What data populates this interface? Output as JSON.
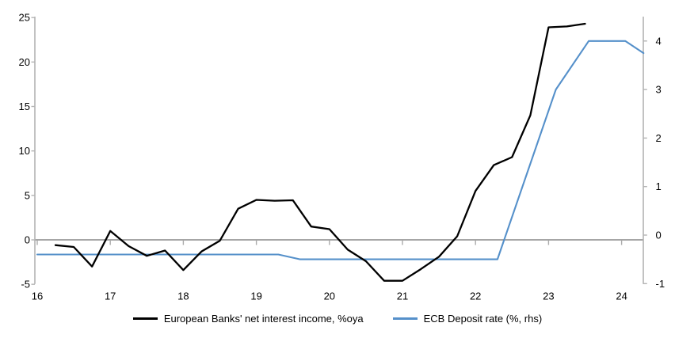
{
  "chart_data": {
    "type": "line",
    "title": "",
    "x_axis": {
      "ticks": [
        16,
        17,
        18,
        19,
        20,
        21,
        22,
        23,
        24
      ],
      "min": 16,
      "max": 24.35
    },
    "left_axis": {
      "ticks": [
        25,
        20,
        15,
        10,
        5,
        0,
        -5
      ],
      "min": -5,
      "max": 25
    },
    "right_axis": {
      "ticks": [
        4,
        3,
        2,
        1,
        0,
        -1
      ],
      "min": -1.05,
      "max": 4.5
    },
    "grid": "zero-line-only",
    "legend_position": "bottom",
    "series": [
      {
        "name": "European Banks' net interest income, %oya",
        "axis": "left",
        "color": "#000000",
        "points": [
          [
            16.25,
            -0.6
          ],
          [
            16.5,
            -0.8
          ],
          [
            16.75,
            -3.0
          ],
          [
            17.0,
            1.0
          ],
          [
            17.25,
            -0.7
          ],
          [
            17.5,
            -1.8
          ],
          [
            17.75,
            -1.2
          ],
          [
            18.0,
            -3.4
          ],
          [
            18.25,
            -1.3
          ],
          [
            18.5,
            -0.1
          ],
          [
            18.75,
            3.5
          ],
          [
            19.0,
            4.5
          ],
          [
            19.25,
            4.4
          ],
          [
            19.5,
            4.45
          ],
          [
            19.75,
            1.5
          ],
          [
            20.0,
            1.2
          ],
          [
            20.25,
            -1.1
          ],
          [
            20.5,
            -2.4
          ],
          [
            20.75,
            -4.6
          ],
          [
            21.0,
            -4.6
          ],
          [
            21.25,
            -3.3
          ],
          [
            21.5,
            -1.9
          ],
          [
            21.75,
            0.4
          ],
          [
            22.0,
            5.5
          ],
          [
            22.25,
            8.4
          ],
          [
            22.5,
            9.3
          ],
          [
            22.75,
            14.0
          ],
          [
            23.0,
            23.9
          ],
          [
            23.25,
            24.0
          ],
          [
            23.5,
            24.3
          ]
        ]
      },
      {
        "name": "ECB Deposit rate (%, rhs)",
        "axis": "right",
        "color": "#5590CA",
        "points": [
          [
            16.0,
            -0.4
          ],
          [
            19.3,
            -0.4
          ],
          [
            19.6,
            -0.5
          ],
          [
            22.3,
            -0.5
          ],
          [
            23.1,
            3.0
          ],
          [
            23.55,
            4.0
          ],
          [
            24.05,
            4.0
          ],
          [
            24.3,
            3.75
          ]
        ]
      }
    ],
    "colors": {
      "zero_line": "#A6A6A6",
      "spine": "#B3B3B3",
      "year_tick": "#ABABAB",
      "text": "#000000"
    }
  }
}
